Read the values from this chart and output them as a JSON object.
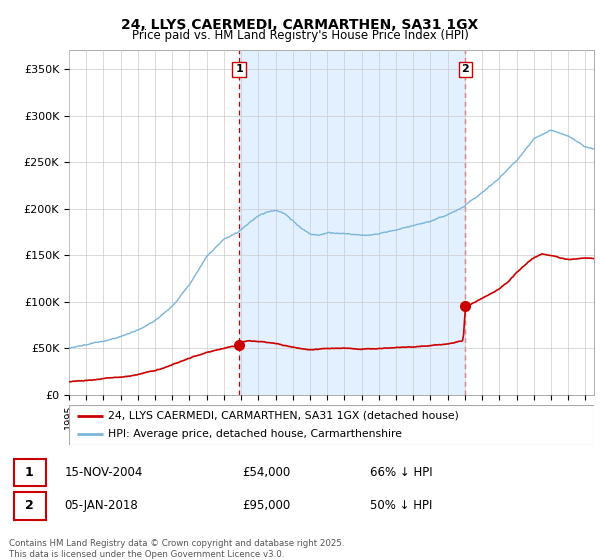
{
  "title": "24, LLYS CAERMEDI, CARMARTHEN, SA31 1GX",
  "subtitle": "Price paid vs. HM Land Registry's House Price Index (HPI)",
  "hpi_label": "HPI: Average price, detached house, Carmarthenshire",
  "price_label": "24, LLYS CAERMEDI, CARMARTHEN, SA31 1GX (detached house)",
  "hpi_color": "#7ab5d9",
  "price_color": "#cc0000",
  "dashed_color": "#cc0000",
  "background_color": "#ffffff",
  "plot_bg": "#ffffff",
  "shade_color": "#ddeeff",
  "ylim": [
    0,
    370000
  ],
  "yticks": [
    0,
    50000,
    100000,
    150000,
    200000,
    250000,
    300000,
    350000
  ],
  "ytick_labels": [
    "£0",
    "£50K",
    "£100K",
    "£150K",
    "£200K",
    "£250K",
    "£300K",
    "£350K"
  ],
  "sale1_date": "15-NOV-2004",
  "sale1_price": 54000,
  "sale1_label": "66% ↓ HPI",
  "sale1_x": 2004.88,
  "sale2_date": "05-JAN-2018",
  "sale2_price": 95000,
  "sale2_label": "50% ↓ HPI",
  "sale2_x": 2018.03,
  "footnote": "Contains HM Land Registry data © Crown copyright and database right 2025.\nThis data is licensed under the Open Government Licence v3.0.",
  "xmin": 1995,
  "xmax": 2025.5
}
